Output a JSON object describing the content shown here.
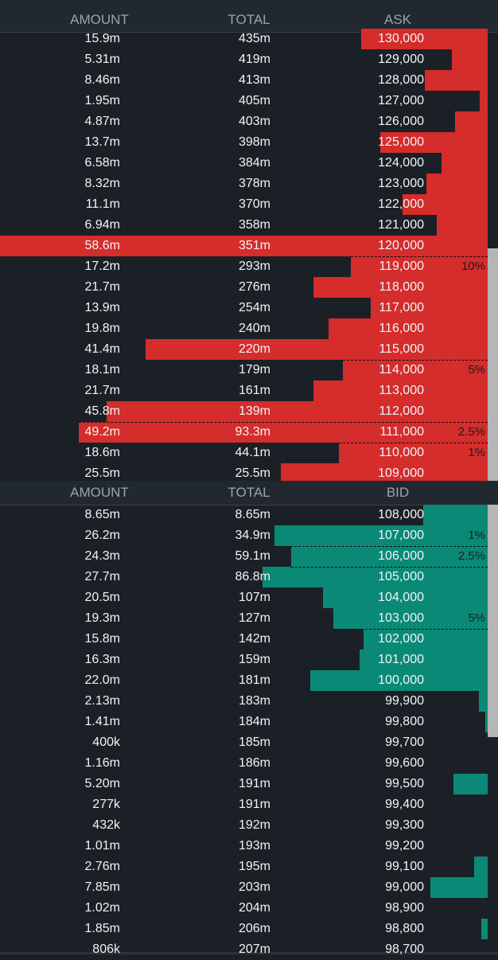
{
  "ask_header": {
    "amount": "AMOUNT",
    "total": "TOTAL",
    "price": "ASK"
  },
  "bid_header": {
    "amount": "AMOUNT",
    "total": "TOTAL",
    "price": "BID"
  },
  "colors": {
    "ask": "#d52c2c",
    "bid": "#0a8a76",
    "background": "#1b2026"
  },
  "asks": [
    {
      "amount": "15.9m",
      "total": "435m",
      "price": "130,000"
    },
    {
      "amount": "5.31m",
      "total": "419m",
      "price": "129,000"
    },
    {
      "amount": "8.46m",
      "total": "413m",
      "price": "128,000"
    },
    {
      "amount": "1.95m",
      "total": "405m",
      "price": "127,000"
    },
    {
      "amount": "4.87m",
      "total": "403m",
      "price": "126,000"
    },
    {
      "amount": "13.7m",
      "total": "398m",
      "price": "125,000"
    },
    {
      "amount": "6.58m",
      "total": "384m",
      "price": "124,000"
    },
    {
      "amount": "8.32m",
      "total": "378m",
      "price": "123,000"
    },
    {
      "amount": "11.1m",
      "total": "370m",
      "price": "122,000"
    },
    {
      "amount": "6.94m",
      "total": "358m",
      "price": "121,000"
    },
    {
      "amount": "58.6m",
      "total": "351m",
      "price": "120,000"
    },
    {
      "amount": "17.2m",
      "total": "293m",
      "price": "119,000",
      "pct": "10%"
    },
    {
      "amount": "21.7m",
      "total": "276m",
      "price": "118,000"
    },
    {
      "amount": "13.9m",
      "total": "254m",
      "price": "117,000"
    },
    {
      "amount": "19.8m",
      "total": "240m",
      "price": "116,000"
    },
    {
      "amount": "41.4m",
      "total": "220m",
      "price": "115,000"
    },
    {
      "amount": "18.1m",
      "total": "179m",
      "price": "114,000",
      "pct": "5%"
    },
    {
      "amount": "21.7m",
      "total": "161m",
      "price": "113,000"
    },
    {
      "amount": "45.8m",
      "total": "139m",
      "price": "112,000"
    },
    {
      "amount": "49.2m",
      "total": "93.3m",
      "price": "111,000",
      "pct": "2.5%"
    },
    {
      "amount": "18.6m",
      "total": "44.1m",
      "price": "110,000",
      "pct": "1%"
    },
    {
      "amount": "25.5m",
      "total": "25.5m",
      "price": "109,000"
    }
  ],
  "bids": [
    {
      "amount": "8.65m",
      "total": "8.65m",
      "price": "108,000"
    },
    {
      "amount": "26.2m",
      "total": "34.9m",
      "price": "107,000",
      "pct": "1%"
    },
    {
      "amount": "24.3m",
      "total": "59.1m",
      "price": "106,000",
      "pct": "2.5%"
    },
    {
      "amount": "27.7m",
      "total": "86.8m",
      "price": "105,000"
    },
    {
      "amount": "20.5m",
      "total": "107m",
      "price": "104,000"
    },
    {
      "amount": "19.3m",
      "total": "127m",
      "price": "103,000",
      "pct": "5%"
    },
    {
      "amount": "15.8m",
      "total": "142m",
      "price": "102,000"
    },
    {
      "amount": "16.3m",
      "total": "159m",
      "price": "101,000"
    },
    {
      "amount": "22.0m",
      "total": "181m",
      "price": "100,000"
    },
    {
      "amount": "2.13m",
      "total": "183m",
      "price": "99,900"
    },
    {
      "amount": "1.41m",
      "total": "184m",
      "price": "99,800"
    },
    {
      "amount": "400k",
      "total": "185m",
      "price": "99,700"
    },
    {
      "amount": "1.16m",
      "total": "186m",
      "price": "99,600"
    },
    {
      "amount": "5.20m",
      "total": "191m",
      "price": "99,500"
    },
    {
      "amount": "277k",
      "total": "191m",
      "price": "99,400"
    },
    {
      "amount": "432k",
      "total": "192m",
      "price": "99,300"
    },
    {
      "amount": "1.01m",
      "total": "193m",
      "price": "99,200"
    },
    {
      "amount": "2.76m",
      "total": "195m",
      "price": "99,100"
    },
    {
      "amount": "7.85m",
      "total": "203m",
      "price": "99,000"
    },
    {
      "amount": "1.02m",
      "total": "204m",
      "price": "98,900"
    },
    {
      "amount": "1.85m",
      "total": "206m",
      "price": "98,800"
    },
    {
      "amount": "806k",
      "total": "207m",
      "price": "98,700"
    }
  ]
}
